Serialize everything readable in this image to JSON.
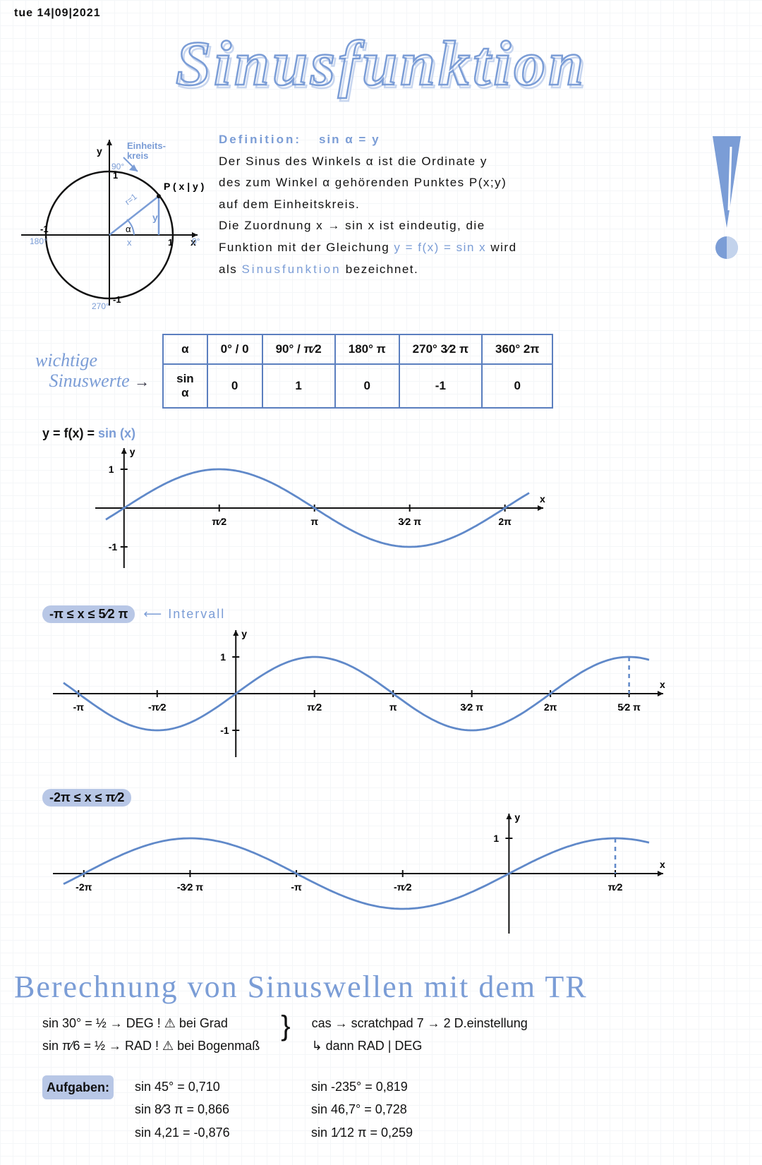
{
  "date": "tue 14|09|2021",
  "title": "Sinusfunktion",
  "definition": {
    "header": "Definition:",
    "eq": "sin α = y",
    "l1": "Der Sinus des Winkels α ist die Ordinate y",
    "l2": "des zum Winkel α gehörenden Punktes P(x;y)",
    "l3": "auf dem Einheitskreis.",
    "l4a": "Die Zuordnung  x → sin x  ist eindeutig, die",
    "l5a": "Funktion mit der Gleichung ",
    "l5b": "y = f(x) = sin x",
    "l5c": " wird",
    "l6a": "als ",
    "l6b": "Sinusfunktion",
    "l6c": " bezeichnet."
  },
  "unitcircle": {
    "label_einheit": "Einheits-\nkreis",
    "P": "P ( x | y )",
    "y": "y",
    "x": "x",
    "r": "r=1",
    "a90": "90°",
    "a0": "0°",
    "a180": "180°",
    "a270": "270°",
    "plus1y": "1",
    "minus1y": "-1",
    "minus1x": "-1",
    "plus1x": "1"
  },
  "wichtige1": "wichtige",
  "wichtige2": "Sinuswerte",
  "table": {
    "head_a": "α",
    "cells_a": [
      "0° / 0",
      "90° / π⁄2",
      "180°    π",
      "270°   3⁄2 π",
      "360°   2π"
    ],
    "head_s": "sin α",
    "cells_s": [
      "0",
      "1",
      "0",
      "-1",
      "0"
    ]
  },
  "g1": {
    "label_a": "y = f(x) = ",
    "label_b": "sin (x)",
    "xticks": [
      "π⁄2",
      "π",
      "3⁄2 π",
      "2π"
    ],
    "yticks": [
      "1",
      "-1"
    ],
    "color": "#6089c9",
    "xmin": 0,
    "xmax": 6.2832,
    "ylim": [
      -1.3,
      1.3
    ]
  },
  "g2": {
    "label_a": "-π ≤ x ≤ 5⁄2 π",
    "label_note": "Intervall",
    "xticks_neg": [
      "-π",
      "-π⁄2"
    ],
    "xticks_pos": [
      "π⁄2",
      "π",
      "3⁄2 π",
      "2π",
      "5⁄2 π"
    ],
    "yticks": [
      "1",
      "-1"
    ],
    "color": "#6089c9",
    "xmin": -3.1416,
    "xmax": 7.854
  },
  "g3": {
    "label_a": "-2π ≤ x ≤ π⁄2",
    "xticks_neg": [
      "-2π",
      "-3⁄2 π",
      "-π",
      "-π⁄2"
    ],
    "xticks_pos": [
      "π⁄2"
    ],
    "yticks": [
      "1"
    ],
    "color": "#6089c9",
    "xmin": -6.2832,
    "xmax": 1.5708
  },
  "section2": "Berechnung  von  Sinuswellen  mit  dem   TR",
  "tr": {
    "l1": "sin 30° = ½ → DEG ! ⚠ bei Grad",
    "l2": "sin π⁄6 = ½ → RAD ! ⚠ bei Bogenmaß",
    "r1": "cas → scratchpad  7 → 2 D.einstellung",
    "r2": "↳ dann  RAD | DEG"
  },
  "auf": {
    "label": "Aufgaben:",
    "rows": [
      [
        "sin 45° = 0,710",
        "sin -235° = 0,819"
      ],
      [
        "sin 8⁄3 π = 0,866",
        "sin 46,7° = 0,728"
      ],
      [
        "sin 4,21 = -0,876",
        "sin 1⁄12 π = 0,259"
      ]
    ]
  },
  "colors": {
    "accent": "#7b9dd6",
    "dark": "#111",
    "bubble": "#b8c7e6",
    "curve": "#6089c9",
    "tableBorder": "#5b7fbf"
  }
}
